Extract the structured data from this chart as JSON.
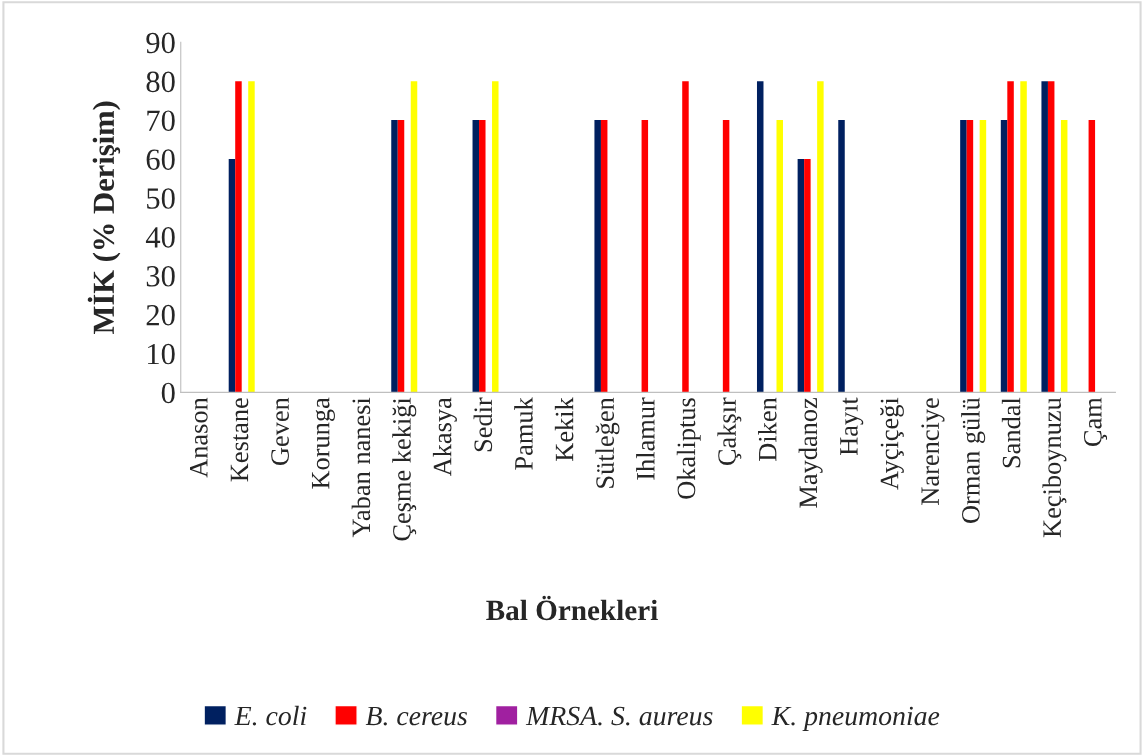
{
  "chart_data": {
    "type": "bar",
    "xlabel": "Bal Örnekleri",
    "ylabel": "MİK (% Derişim)",
    "categories": [
      "Anason",
      "Kestane",
      "Geven",
      "Korunga",
      "Yaban nanesi",
      "Çeşme kekiği",
      "Akasya",
      "Sedir",
      "Pamuk",
      "Kekik",
      "Sütleğen",
      "Ihlamur",
      "Okaliptus",
      "Çakşır",
      "Diken",
      "Maydanoz",
      "Hayıt",
      "Ayçiçeği",
      "Narenciye",
      "Orman gülü",
      "Sandal",
      "Keçiboynuzu",
      "Çam"
    ],
    "series": [
      {
        "name": "E. coli",
        "color": "#002060",
        "values": [
          null,
          60,
          null,
          null,
          null,
          70,
          null,
          70,
          null,
          null,
          70,
          null,
          null,
          null,
          80,
          60,
          70,
          null,
          null,
          70,
          70,
          80,
          null
        ]
      },
      {
        "name": "B. cereus",
        "color": "#ff0000",
        "values": [
          null,
          80,
          null,
          null,
          null,
          70,
          null,
          70,
          null,
          null,
          70,
          70,
          80,
          70,
          null,
          60,
          null,
          null,
          null,
          70,
          80,
          80,
          70
        ]
      },
      {
        "name": "MRSA. S. aureus",
        "color": "#a020a0",
        "values": [
          null,
          null,
          null,
          null,
          null,
          null,
          null,
          null,
          null,
          null,
          null,
          null,
          null,
          null,
          null,
          null,
          null,
          null,
          null,
          null,
          null,
          null,
          null
        ]
      },
      {
        "name": "K. pneumoniae",
        "color": "#ffff00",
        "values": [
          null,
          80,
          null,
          null,
          null,
          80,
          null,
          80,
          null,
          null,
          null,
          null,
          null,
          null,
          70,
          80,
          null,
          null,
          null,
          70,
          80,
          70,
          null
        ]
      }
    ],
    "ylim": [
      0,
      90
    ],
    "yticks": [
      0,
      10,
      20,
      30,
      40,
      50,
      60,
      70,
      80,
      90
    ],
    "grid": false,
    "legend": "bottom"
  }
}
